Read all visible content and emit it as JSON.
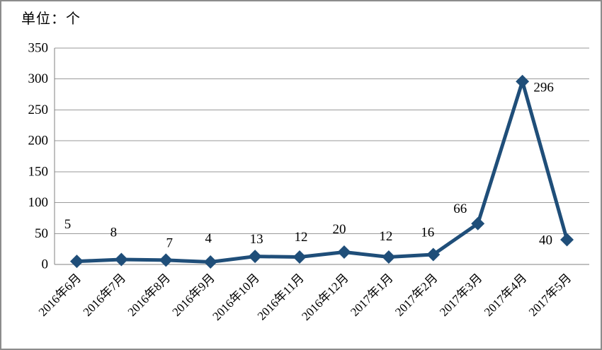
{
  "chart_data": {
    "type": "line",
    "unit_label": "单位：个",
    "categories": [
      "2016年6月",
      "2016年7月",
      "2016年8月",
      "2016年9月",
      "2016年10月",
      "2016年11月",
      "2016年12月",
      "2017年1月",
      "2017年2月",
      "2017年3月",
      "2017年4月",
      "2017年5月"
    ],
    "values": [
      5,
      8,
      7,
      4,
      13,
      12,
      20,
      12,
      16,
      66,
      296,
      40
    ],
    "data_labels": [
      "5",
      "8",
      "7",
      "4",
      "13",
      "12",
      "20",
      "12",
      "16",
      "66",
      "296",
      "40"
    ],
    "ytick_labels": [
      "0",
      "50",
      "100",
      "150",
      "200",
      "250",
      "300",
      "350"
    ],
    "ylim": [
      0,
      350
    ],
    "ytick_step": 50,
    "grid": true,
    "legend": "none",
    "line_color": "#1F4E79",
    "marker": "diamond",
    "gridline_color": "#9a9a9a",
    "axis_color": "#808080"
  }
}
